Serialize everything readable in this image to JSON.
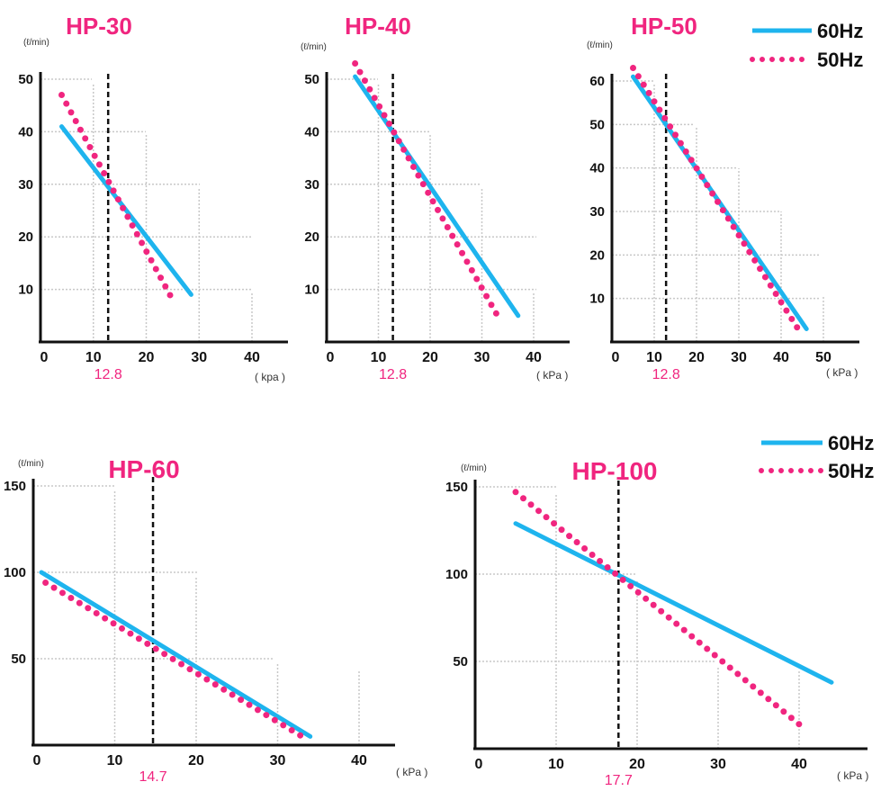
{
  "colors": {
    "hz60": "#1eb4ee",
    "hz50": "#f0257f",
    "title": "#f0257f",
    "axis": "#111111",
    "grid": "#c8c8c8",
    "marker": "#111111"
  },
  "legend_top": {
    "hz60": "60Hz",
    "hz50": "50Hz"
  },
  "legend_bottom": {
    "hz60": "60Hz",
    "hz50": "50Hz"
  },
  "chart_data": [
    {
      "type": "line",
      "title": "HP-30",
      "ylabel": "(ℓ/min)",
      "xlabel": "( kpa )",
      "xlim": [
        0,
        40
      ],
      "ylim": [
        0,
        50
      ],
      "xticks": [
        "0",
        "10",
        "20",
        "30",
        "40"
      ],
      "yticks": [
        "10",
        "20",
        "30",
        "40",
        "50"
      ],
      "marker_x": 12.8,
      "marker_label": "12.8",
      "series": [
        {
          "name": "60Hz",
          "x": [
            4,
            28.5
          ],
          "y": [
            41,
            9
          ]
        },
        {
          "name": "50Hz",
          "x": [
            4,
            25
          ],
          "y": [
            47,
            8
          ]
        }
      ]
    },
    {
      "type": "line",
      "title": "HP-40",
      "ylabel": "(ℓ/min)",
      "xlabel": "( kPa )",
      "xlim": [
        0,
        40
      ],
      "ylim": [
        0,
        50
      ],
      "xticks": [
        "0",
        "10",
        "20",
        "30",
        "40"
      ],
      "yticks": [
        "10",
        "20",
        "30",
        "40",
        "50"
      ],
      "marker_x": 12.8,
      "marker_label": "12.8",
      "series": [
        {
          "name": "60Hz",
          "x": [
            5.5,
            37
          ],
          "y": [
            50.5,
            5
          ]
        },
        {
          "name": "50Hz",
          "x": [
            5.5,
            33
          ],
          "y": [
            53,
            5
          ]
        }
      ]
    },
    {
      "type": "line",
      "title": "HP-50",
      "ylabel": "(ℓ/min)",
      "xlabel": "( kPa )",
      "xlim": [
        0,
        50
      ],
      "ylim": [
        0,
        60
      ],
      "xticks": [
        "0",
        "10",
        "20",
        "30",
        "40",
        "50"
      ],
      "yticks": [
        "10",
        "20",
        "30",
        "40",
        "50",
        "60"
      ],
      "marker_x": 12.8,
      "marker_label": "12.8",
      "series": [
        {
          "name": "60Hz",
          "x": [
            5,
            46
          ],
          "y": [
            61,
            3
          ]
        },
        {
          "name": "50Hz",
          "x": [
            5,
            44
          ],
          "y": [
            63,
            3
          ]
        }
      ]
    },
    {
      "type": "line",
      "title": "HP-60",
      "ylabel": "(ℓ/min)",
      "xlabel": "( kPa )",
      "xlim": [
        0,
        40
      ],
      "ylim": [
        0,
        150
      ],
      "xticks": [
        "0",
        "10",
        "20",
        "30",
        "40"
      ],
      "yticks": [
        "50",
        "100",
        "150"
      ],
      "marker_x": 14.7,
      "marker_label": "14.7",
      "series": [
        {
          "name": "60Hz",
          "x": [
            1,
            34
          ],
          "y": [
            100,
            5
          ]
        },
        {
          "name": "50Hz",
          "x": [
            1.5,
            33
          ],
          "y": [
            94,
            5
          ]
        }
      ]
    },
    {
      "type": "line",
      "title": "HP-100",
      "ylabel": "(ℓ/min)",
      "xlabel": "( kPa )",
      "xlim": [
        0,
        44
      ],
      "ylim": [
        0,
        150
      ],
      "xticks": [
        "0",
        "10",
        "20",
        "30",
        "40"
      ],
      "yticks": [
        "50",
        "100",
        "150"
      ],
      "marker_x": 17.7,
      "marker_label": "17.7",
      "series": [
        {
          "name": "60Hz",
          "x": [
            5,
            44
          ],
          "y": [
            129,
            38
          ]
        },
        {
          "name": "50Hz",
          "x": [
            5,
            40
          ],
          "y": [
            147,
            14
          ]
        }
      ]
    }
  ]
}
